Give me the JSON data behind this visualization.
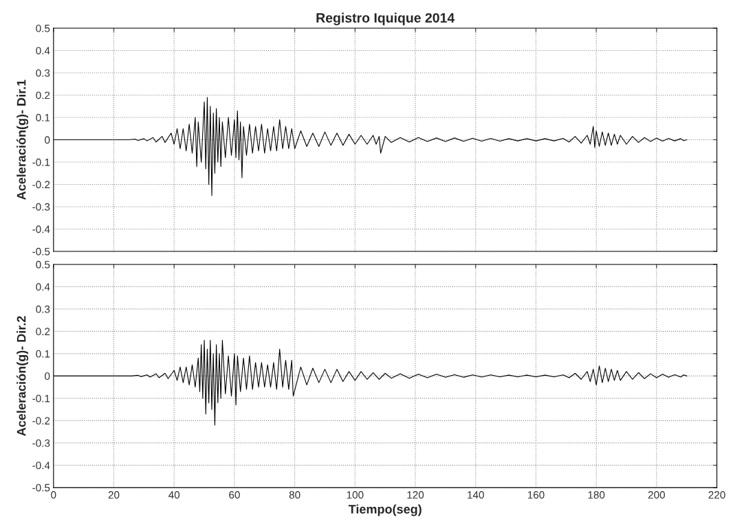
{
  "chart_data": [
    {
      "type": "line",
      "title": "Registro Iquique 2014",
      "ylabel": "Aceleración(g)- Dir.1",
      "xlim": [
        0,
        220
      ],
      "xticks": [
        0,
        20,
        40,
        60,
        80,
        100,
        120,
        140,
        160,
        180,
        200,
        220
      ],
      "ylim": [
        -0.5,
        0.5
      ],
      "yticks": [
        -0.5,
        -0.4,
        -0.3,
        -0.2,
        -0.1,
        0,
        0.1,
        0.2,
        0.3,
        0.4,
        0.5
      ],
      "tick_labels": "y",
      "grid": true,
      "line_style": "solid",
      "series": [
        {
          "color": "#000000",
          "x": [
            0,
            25,
            27,
            28,
            30,
            31,
            33,
            34,
            36,
            37,
            39,
            40,
            41,
            42,
            43,
            44,
            45,
            46,
            47,
            47.5,
            48,
            49,
            50,
            50.5,
            51,
            51.5,
            52,
            52.5,
            53,
            53.5,
            54,
            54.5,
            55,
            55.5,
            56,
            57,
            58,
            59,
            60,
            60.5,
            61,
            61.5,
            62,
            62.5,
            63,
            64,
            65,
            66,
            67,
            68,
            69,
            70,
            71,
            72,
            73,
            74,
            75,
            76,
            77,
            78,
            79,
            80,
            82,
            84,
            86,
            88,
            90,
            92,
            94,
            96,
            98,
            100,
            102,
            104,
            106,
            107,
            108,
            108.5,
            110,
            112,
            115,
            118,
            121,
            124,
            127,
            130,
            133,
            136,
            139,
            142,
            145,
            148,
            151,
            154,
            157,
            160,
            163,
            166,
            169,
            171,
            173,
            175,
            177,
            178,
            179,
            179.5,
            180,
            181,
            182,
            183,
            184,
            185,
            186,
            187,
            188,
            190,
            192,
            194,
            196,
            198,
            200,
            202,
            204,
            206,
            208,
            209,
            210
          ],
          "values": [
            0,
            0,
            0.003,
            -0.003,
            0.005,
            -0.005,
            0.01,
            -0.01,
            0.015,
            -0.012,
            0.03,
            -0.02,
            0.05,
            -0.04,
            0.05,
            -0.05,
            0.07,
            -0.06,
            0.1,
            -0.12,
            0.08,
            -0.1,
            0.17,
            -0.13,
            0.19,
            -0.2,
            0.15,
            -0.25,
            0.12,
            -0.15,
            0.14,
            -0.1,
            0.1,
            -0.12,
            0.08,
            -0.08,
            0.1,
            -0.07,
            0.09,
            -0.08,
            0.13,
            -0.09,
            0.08,
            -0.17,
            0.06,
            -0.07,
            0.07,
            -0.06,
            0.06,
            -0.05,
            0.07,
            -0.06,
            0.05,
            -0.05,
            0.06,
            -0.05,
            0.09,
            -0.04,
            0.06,
            -0.04,
            0.05,
            -0.04,
            0.04,
            -0.03,
            0.03,
            -0.03,
            0.035,
            -0.025,
            0.03,
            -0.025,
            0.025,
            -0.02,
            0.02,
            -0.02,
            0.02,
            -0.02,
            0.015,
            -0.06,
            0.015,
            -0.012,
            0.01,
            -0.01,
            0.01,
            -0.008,
            0.008,
            -0.008,
            0.008,
            -0.007,
            0.007,
            -0.006,
            0.006,
            -0.006,
            0.005,
            -0.005,
            0.005,
            -0.005,
            0.005,
            -0.005,
            0.006,
            -0.01,
            0.015,
            -0.015,
            0.02,
            -0.02,
            0.06,
            -0.035,
            0.04,
            -0.03,
            0.035,
            -0.025,
            0.03,
            -0.025,
            0.025,
            -0.02,
            0.02,
            -0.02,
            0.015,
            -0.012,
            0.01,
            -0.008,
            0.008,
            -0.006,
            0.006,
            -0.005,
            0.005,
            -0.004,
            0
          ]
        }
      ]
    },
    {
      "type": "line",
      "xlabel": "Tiempo(seg)",
      "ylabel": "Aceleración(g)- Dir.2",
      "xlim": [
        0,
        220
      ],
      "xticks": [
        0,
        20,
        40,
        60,
        80,
        100,
        120,
        140,
        160,
        180,
        200,
        220
      ],
      "ylim": [
        -0.5,
        0.5
      ],
      "yticks": [
        -0.5,
        -0.4,
        -0.3,
        -0.2,
        -0.1,
        0,
        0.1,
        0.2,
        0.3,
        0.4,
        0.5
      ],
      "grid": true,
      "line_style": "solid",
      "series": [
        {
          "color": "#000000",
          "x": [
            0,
            26,
            28,
            29,
            31,
            32,
            34,
            35,
            37,
            38,
            40,
            41,
            42,
            43,
            44,
            45,
            46,
            47,
            48,
            48.5,
            49,
            49.5,
            50,
            50.5,
            51,
            51.5,
            52,
            52.5,
            53,
            53.5,
            54,
            54.5,
            55,
            55.5,
            56,
            57,
            58,
            59,
            60,
            60.5,
            61,
            62,
            63,
            64,
            65,
            66,
            67,
            68,
            69,
            70,
            71,
            72,
            73,
            74,
            75,
            76,
            77,
            78,
            79,
            79.5,
            82,
            84,
            86,
            88,
            90,
            92,
            94,
            96,
            98,
            100,
            102,
            104,
            106,
            108,
            110,
            112,
            115,
            118,
            121,
            124,
            127,
            130,
            133,
            136,
            139,
            142,
            145,
            148,
            151,
            154,
            157,
            160,
            163,
            166,
            169,
            171,
            173,
            175,
            177,
            178,
            179,
            180,
            181,
            182,
            183,
            184,
            185,
            186,
            187,
            188,
            190,
            192,
            194,
            196,
            198,
            200,
            202,
            204,
            206,
            208,
            209,
            210
          ],
          "values": [
            0,
            0,
            0.003,
            -0.003,
            0.005,
            -0.005,
            0.01,
            -0.008,
            0.012,
            -0.012,
            0.025,
            -0.02,
            0.04,
            -0.03,
            0.04,
            -0.04,
            0.05,
            -0.05,
            0.08,
            -0.07,
            0.14,
            -0.1,
            0.16,
            -0.17,
            0.12,
            -0.12,
            0.16,
            -0.15,
            0.1,
            -0.22,
            0.14,
            -0.12,
            0.1,
            -0.1,
            0.16,
            -0.08,
            0.09,
            -0.09,
            0.1,
            -0.13,
            0.09,
            -0.07,
            0.08,
            -0.06,
            0.09,
            -0.06,
            0.06,
            -0.05,
            0.06,
            -0.05,
            0.05,
            -0.05,
            0.06,
            -0.06,
            0.12,
            -0.05,
            0.07,
            -0.06,
            0.07,
            -0.09,
            0.04,
            -0.04,
            0.035,
            -0.03,
            0.03,
            -0.03,
            0.03,
            -0.025,
            0.02,
            -0.02,
            0.02,
            -0.015,
            0.015,
            -0.015,
            0.012,
            -0.01,
            0.01,
            -0.01,
            0.008,
            -0.008,
            0.008,
            -0.006,
            0.006,
            -0.006,
            0.005,
            -0.005,
            0.005,
            -0.004,
            0.004,
            -0.004,
            0.004,
            -0.004,
            0.004,
            -0.004,
            0.005,
            -0.008,
            0.012,
            -0.015,
            0.02,
            -0.025,
            0.03,
            -0.04,
            0.045,
            -0.03,
            0.035,
            -0.025,
            0.03,
            -0.02,
            0.025,
            -0.02,
            0.02,
            -0.015,
            0.015,
            -0.012,
            0.01,
            -0.008,
            0.008,
            -0.006,
            0.006,
            -0.005,
            0.005,
            0
          ]
        }
      ]
    }
  ]
}
